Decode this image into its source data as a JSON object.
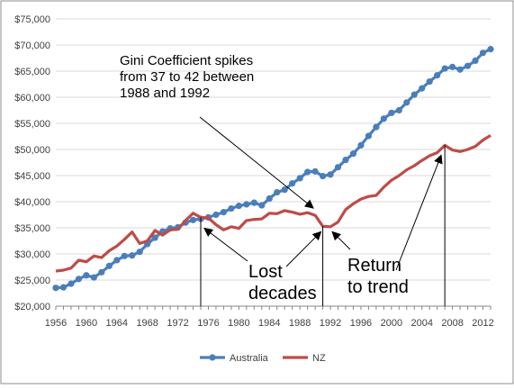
{
  "chart_data": {
    "type": "line",
    "title": "",
    "xlabel": "",
    "ylabel": "",
    "x_range": [
      1956,
      2013
    ],
    "ylim": [
      20000,
      75000
    ],
    "grid": "horizontal",
    "legend_position": "bottom",
    "x_tick_labels": [
      "1956",
      "1960",
      "1964",
      "1968",
      "1972",
      "1976",
      "1980",
      "1984",
      "1988",
      "1992",
      "1996",
      "2000",
      "2004",
      "2008",
      "2012"
    ],
    "y_tick_labels": [
      "$20,000",
      "$25,000",
      "$30,000",
      "$35,000",
      "$40,000",
      "$45,000",
      "$50,000",
      "$55,000",
      "$60,000",
      "$65,000",
      "$70,000",
      "$75,000"
    ],
    "x_ticks": [
      1956,
      1960,
      1964,
      1968,
      1972,
      1976,
      1980,
      1984,
      1988,
      1992,
      1996,
      2000,
      2004,
      2008,
      2012
    ],
    "y_ticks": [
      20000,
      25000,
      30000,
      35000,
      40000,
      45000,
      50000,
      55000,
      60000,
      65000,
      70000,
      75000
    ],
    "series": [
      {
        "name": "Australia",
        "color": "#4a7ebb",
        "marker": "circle",
        "values": [
          [
            1956,
            23500
          ],
          [
            1957,
            23600
          ],
          [
            1958,
            24300
          ],
          [
            1959,
            25200
          ],
          [
            1960,
            25900
          ],
          [
            1961,
            25500
          ],
          [
            1962,
            26500
          ],
          [
            1963,
            27700
          ],
          [
            1964,
            28800
          ],
          [
            1965,
            29600
          ],
          [
            1966,
            29700
          ],
          [
            1967,
            30400
          ],
          [
            1968,
            31900
          ],
          [
            1969,
            33100
          ],
          [
            1970,
            34300
          ],
          [
            1971,
            34900
          ],
          [
            1972,
            35100
          ],
          [
            1973,
            36000
          ],
          [
            1974,
            36500
          ],
          [
            1975,
            36700
          ],
          [
            1976,
            37000
          ],
          [
            1977,
            37500
          ],
          [
            1978,
            38000
          ],
          [
            1979,
            38700
          ],
          [
            1980,
            39200
          ],
          [
            1981,
            39500
          ],
          [
            1982,
            39800
          ],
          [
            1983,
            39300
          ],
          [
            1984,
            40600
          ],
          [
            1985,
            41800
          ],
          [
            1986,
            42300
          ],
          [
            1987,
            43500
          ],
          [
            1988,
            44500
          ],
          [
            1989,
            45700
          ],
          [
            1990,
            45800
          ],
          [
            1991,
            44900
          ],
          [
            1992,
            45200
          ],
          [
            1993,
            46600
          ],
          [
            1994,
            48000
          ],
          [
            1995,
            49200
          ],
          [
            1996,
            50800
          ],
          [
            1997,
            52600
          ],
          [
            1998,
            54300
          ],
          [
            1999,
            55900
          ],
          [
            2000,
            57000
          ],
          [
            2001,
            57500
          ],
          [
            2002,
            59000
          ],
          [
            2003,
            60500
          ],
          [
            2004,
            61700
          ],
          [
            2005,
            63000
          ],
          [
            2006,
            64200
          ],
          [
            2007,
            65500
          ],
          [
            2008,
            65800
          ],
          [
            2009,
            65300
          ],
          [
            2010,
            66000
          ],
          [
            2011,
            67000
          ],
          [
            2012,
            68500
          ],
          [
            2013,
            69200
          ]
        ]
      },
      {
        "name": "NZ",
        "color": "#be4b48",
        "marker": "none",
        "values": [
          [
            1956,
            26700
          ],
          [
            1957,
            26900
          ],
          [
            1958,
            27300
          ],
          [
            1959,
            28800
          ],
          [
            1960,
            28500
          ],
          [
            1961,
            29600
          ],
          [
            1962,
            29300
          ],
          [
            1963,
            30600
          ],
          [
            1964,
            31500
          ],
          [
            1965,
            32800
          ],
          [
            1966,
            34200
          ],
          [
            1967,
            32000
          ],
          [
            1968,
            32500
          ],
          [
            1969,
            34500
          ],
          [
            1970,
            33600
          ],
          [
            1971,
            34600
          ],
          [
            1972,
            34700
          ],
          [
            1973,
            36400
          ],
          [
            1974,
            37800
          ],
          [
            1975,
            37000
          ],
          [
            1976,
            36900
          ],
          [
            1977,
            35600
          ],
          [
            1978,
            34600
          ],
          [
            1979,
            35200
          ],
          [
            1980,
            34900
          ],
          [
            1981,
            36400
          ],
          [
            1982,
            36600
          ],
          [
            1983,
            36700
          ],
          [
            1984,
            37800
          ],
          [
            1985,
            37700
          ],
          [
            1986,
            38300
          ],
          [
            1987,
            38000
          ],
          [
            1988,
            37600
          ],
          [
            1989,
            37900
          ],
          [
            1990,
            37400
          ],
          [
            1991,
            35300
          ],
          [
            1992,
            35200
          ],
          [
            1993,
            36100
          ],
          [
            1994,
            38500
          ],
          [
            1995,
            39600
          ],
          [
            1996,
            40500
          ],
          [
            1997,
            41000
          ],
          [
            1998,
            41200
          ],
          [
            1999,
            42800
          ],
          [
            2000,
            44100
          ],
          [
            2001,
            45000
          ],
          [
            2002,
            46100
          ],
          [
            2003,
            46900
          ],
          [
            2004,
            47900
          ],
          [
            2005,
            48800
          ],
          [
            2006,
            49400
          ],
          [
            2007,
            50800
          ],
          [
            2008,
            49900
          ],
          [
            2009,
            49600
          ],
          [
            2010,
            50000
          ],
          [
            2011,
            50600
          ],
          [
            2012,
            51800
          ],
          [
            2013,
            52700
          ]
        ]
      }
    ],
    "annotations": [
      {
        "id": "gini",
        "lines": [
          "Gini Coefficient spikes",
          "from 37 to 42 between",
          "1988 and 1992"
        ]
      },
      {
        "id": "lost",
        "lines": [
          "Lost",
          "decades"
        ]
      },
      {
        "id": "return",
        "lines": [
          "Return",
          "to trend"
        ]
      }
    ],
    "reference_lines_x": [
      1975,
      1991,
      2007
    ]
  }
}
